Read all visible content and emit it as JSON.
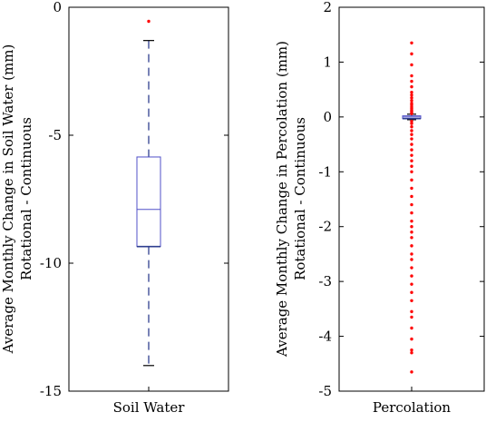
{
  "chart_data": [
    {
      "type": "box",
      "ylabel_lines": [
        "Average Monthly Change in Soil Water (mm)",
        "Rotational - Continuous"
      ],
      "categories": [
        "Soil Water"
      ],
      "ylim": [
        -15,
        0
      ],
      "yticks": [
        0,
        -5,
        -10,
        -15
      ],
      "ytick_labels": [
        "0",
        "-5",
        "-10",
        "-15"
      ],
      "box": {
        "whisker_low": -14.0,
        "q1": -9.35,
        "median": -7.9,
        "q3": -5.85,
        "whisker_high": -1.3
      },
      "outliers": [
        -0.55
      ],
      "colors": {
        "box": "#5050c8",
        "median": "#5050c8",
        "whisker": "#2f3f8f",
        "outlier": "#ff0000"
      }
    },
    {
      "type": "box",
      "ylabel_lines": [
        "Average Monthly Change in Percolation (mm)",
        "Rotational - Continuous"
      ],
      "categories": [
        "Percolation"
      ],
      "ylim": [
        -5,
        2
      ],
      "yticks": [
        2,
        1,
        0,
        -1,
        -2,
        -3,
        -4,
        -5
      ],
      "ytick_labels": [
        "2",
        "1",
        "0",
        "-1",
        "-2",
        "-3",
        "-4",
        "-5"
      ],
      "box": {
        "whisker_low": -0.05,
        "q1": -0.03,
        "median": 0.0,
        "q3": 0.02,
        "whisker_high": 0.05
      },
      "outliers": [
        1.35,
        1.15,
        0.95,
        0.75,
        0.65,
        0.55,
        0.45,
        0.4,
        0.35,
        0.3,
        0.25,
        0.22,
        0.18,
        0.15,
        0.12,
        0.1,
        0.08,
        0.06,
        -0.08,
        -0.12,
        -0.18,
        -0.25,
        -0.32,
        -0.4,
        -0.5,
        -0.6,
        -0.7,
        -0.8,
        -0.9,
        -1.0,
        -1.15,
        -1.3,
        -1.45,
        -1.6,
        -1.75,
        -1.9,
        -2.0,
        -2.1,
        -2.2,
        -2.35,
        -2.5,
        -2.6,
        -2.75,
        -2.9,
        -3.05,
        -3.2,
        -3.35,
        -3.55,
        -3.65,
        -3.85,
        -4.05,
        -4.25,
        -4.3,
        -4.65
      ],
      "colors": {
        "box": "#5050c8",
        "median": "#5050c8",
        "whisker": "#2f3f8f",
        "outlier": "#ff0000"
      }
    }
  ]
}
